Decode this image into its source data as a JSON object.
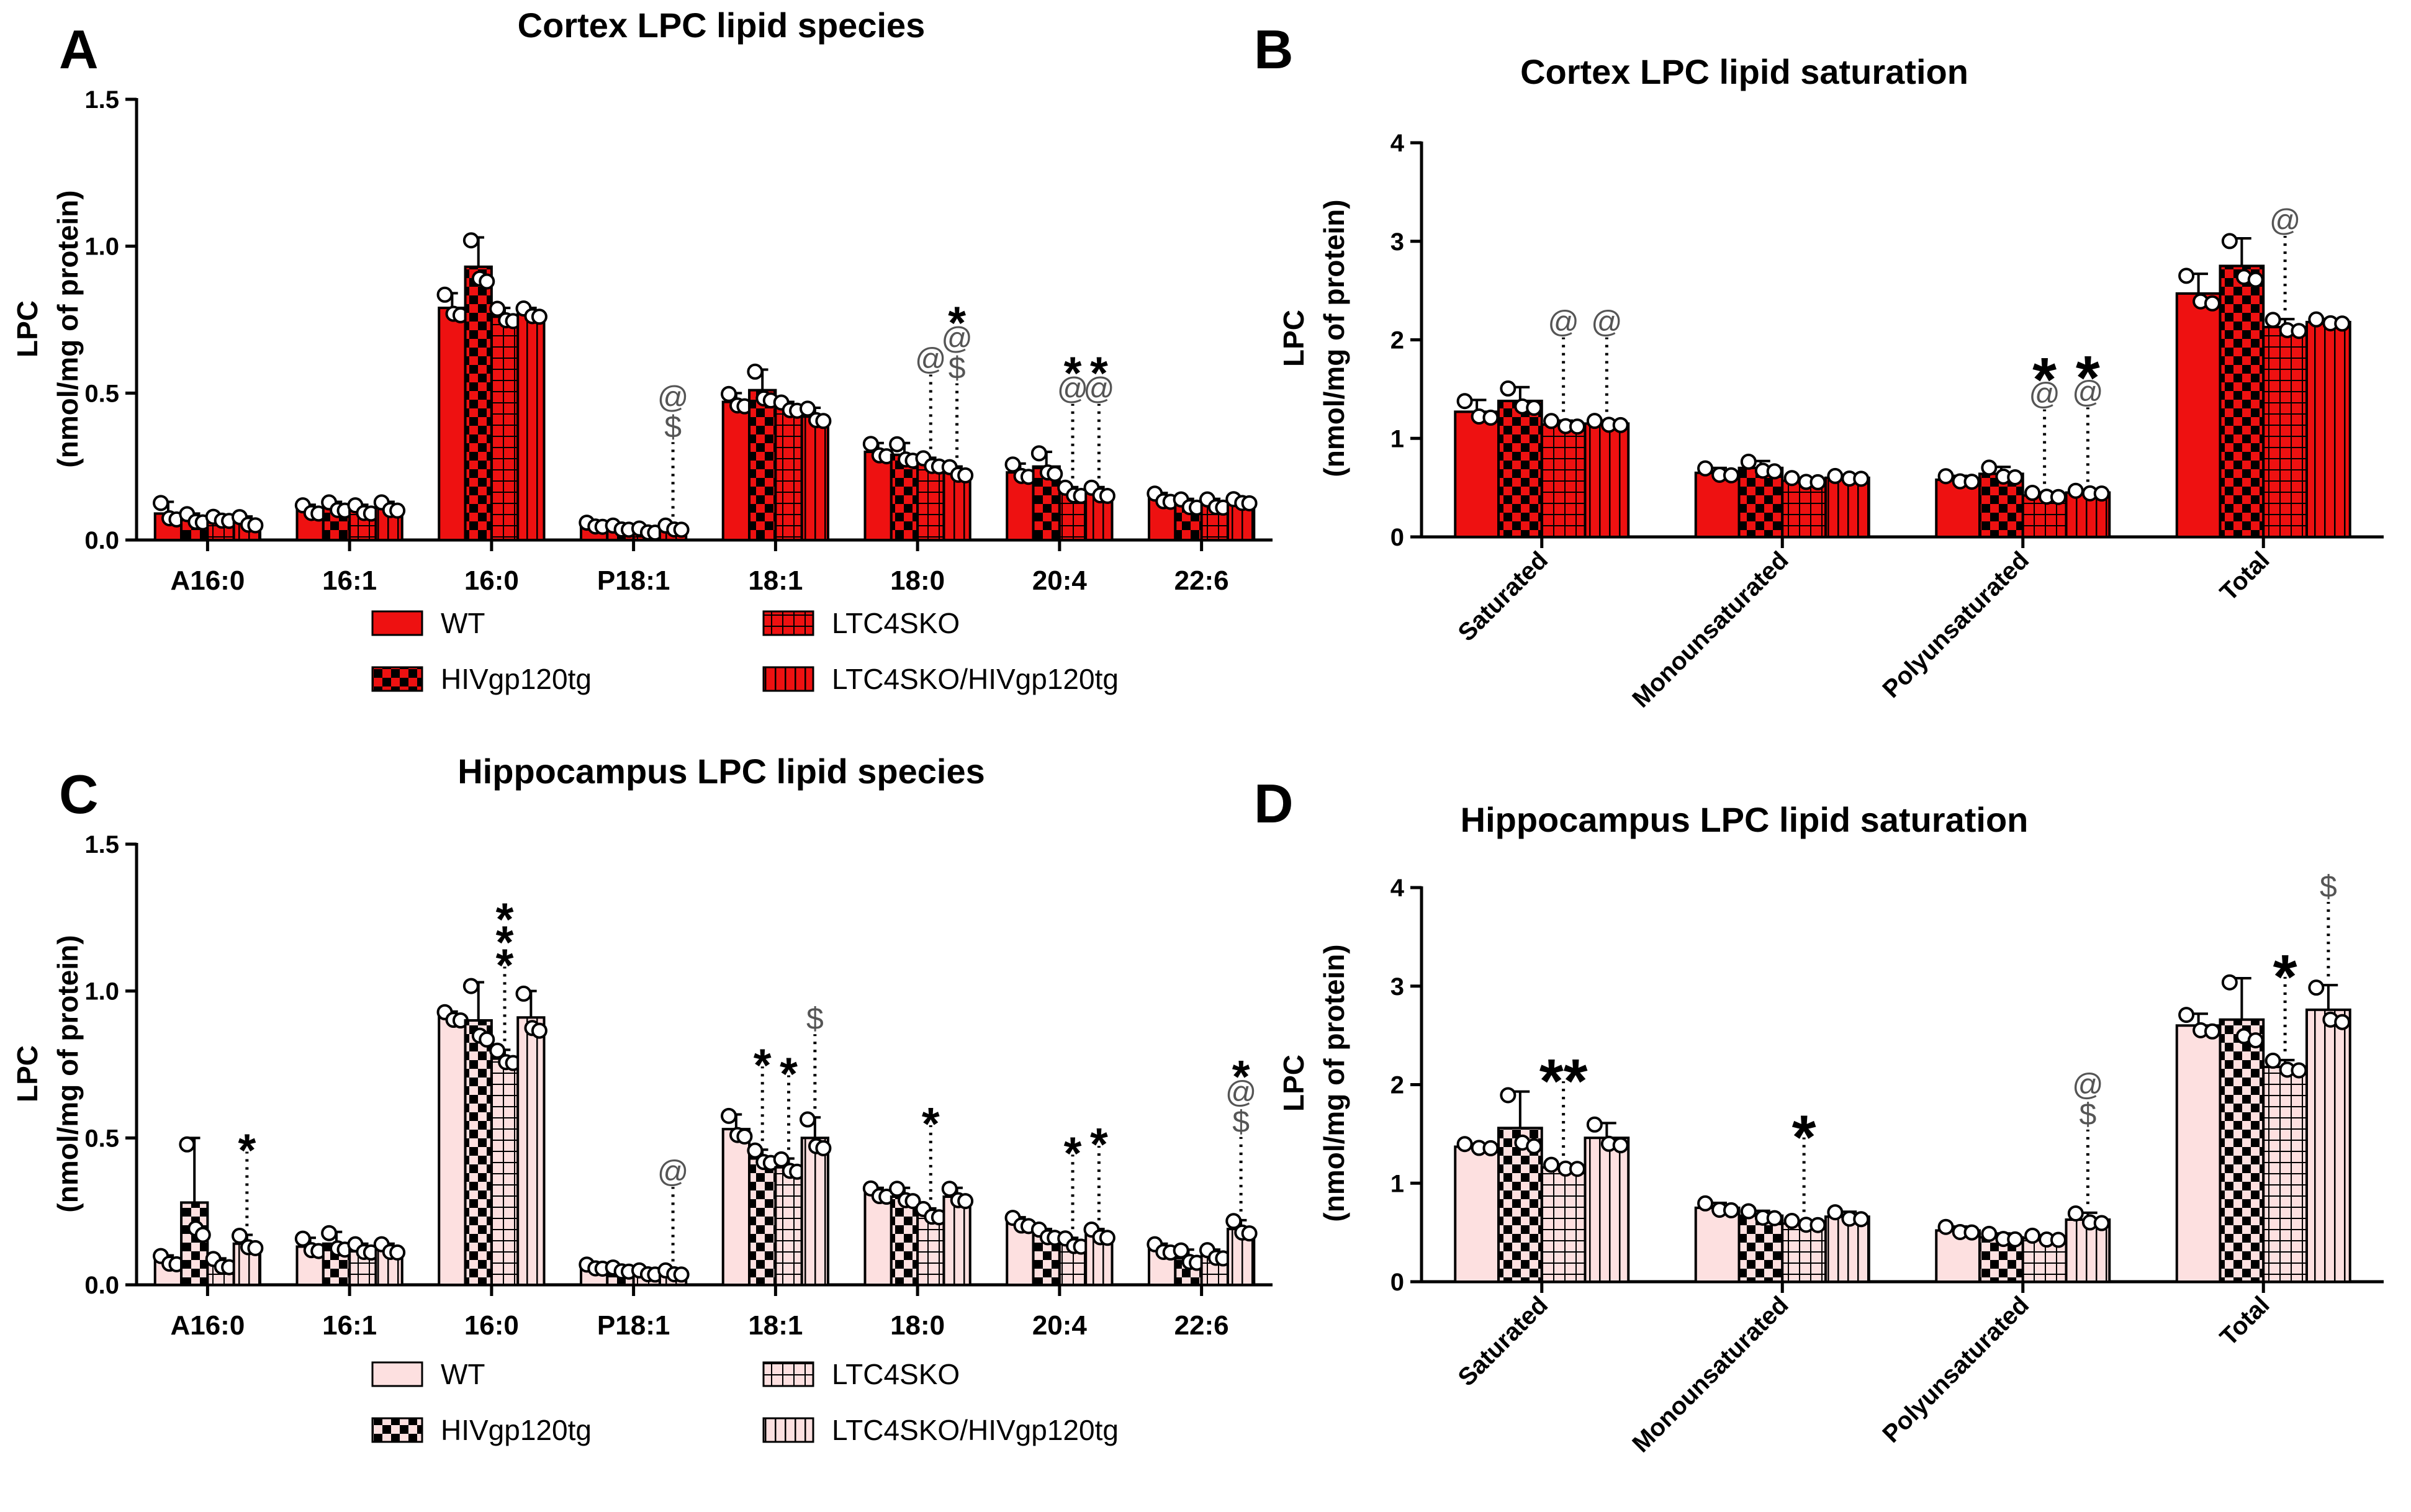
{
  "figure_colors": {
    "cortex_fill": "#ee1111",
    "hippocampus_fill": "#fde0e0",
    "bar_stroke": "#000000"
  },
  "legend_labels": [
    "WT",
    "HIVgp120tg",
    "LTC4SKO",
    "LTC4SKO/HIVgp120tg"
  ],
  "chart_data": [
    {
      "panel": "A",
      "type": "bar",
      "title": "Cortex LPC lipid species",
      "ylabel": "LPC",
      "ylabel2": "(nmol/mg of protein)",
      "ylim": [
        0,
        1.5
      ],
      "yticks": [
        "0.0",
        "0.5",
        "1.0",
        "1.5"
      ],
      "categories": [
        "A16:0",
        "16:1",
        "16:0",
        "P18:1",
        "18:1",
        "18:0",
        "20:4",
        "22:6"
      ],
      "series": [
        {
          "name": "WT",
          "values": [
            0.09,
            0.1,
            0.79,
            0.05,
            0.47,
            0.3,
            0.23,
            0.14
          ],
          "errors": [
            0.04,
            0.02,
            0.05,
            0.01,
            0.03,
            0.03,
            0.03,
            0.02
          ]
        },
        {
          "name": "HIVgp120tg",
          "values": [
            0.07,
            0.11,
            0.93,
            0.04,
            0.51,
            0.29,
            0.25,
            0.12
          ],
          "errors": [
            0.02,
            0.02,
            0.1,
            0.01,
            0.07,
            0.04,
            0.05,
            0.02
          ]
        },
        {
          "name": "LTC4SKO",
          "values": [
            0.07,
            0.1,
            0.76,
            0.03,
            0.45,
            0.26,
            0.16,
            0.12
          ],
          "errors": [
            0.01,
            0.02,
            0.03,
            0.01,
            0.02,
            0.02,
            0.02,
            0.02
          ]
        },
        {
          "name": "LTC4SKO/HIVgp120tg",
          "values": [
            0.06,
            0.11,
            0.77,
            0.04,
            0.42,
            0.23,
            0.16,
            0.13
          ],
          "errors": [
            0.02,
            0.02,
            0.02,
            0.01,
            0.03,
            0.02,
            0.02,
            0.01
          ]
        }
      ],
      "annotations": [
        {
          "category": "P18:1",
          "series": 3,
          "marks": [
            "$",
            "@"
          ]
        },
        {
          "category": "18:0",
          "series": 2,
          "marks": [
            "@"
          ]
        },
        {
          "category": "18:0",
          "series": 3,
          "marks": [
            "$",
            "@",
            "*"
          ]
        },
        {
          "category": "20:4",
          "series": 2,
          "marks": [
            "@",
            "*"
          ]
        },
        {
          "category": "20:4",
          "series": 3,
          "marks": [
            "@",
            "*"
          ]
        }
      ]
    },
    {
      "panel": "B",
      "type": "bar",
      "title": "Cortex LPC lipid saturation",
      "ylabel": "LPC",
      "ylabel2": "(nmol/mg of protein)",
      "ylim": [
        0,
        4
      ],
      "yticks": [
        "0",
        "1",
        "2",
        "3",
        "4"
      ],
      "categories": [
        "Saturated",
        "Monounsaturated",
        "Polyunsaturated",
        "Total"
      ],
      "series": [
        {
          "name": "WT",
          "values": [
            1.27,
            0.65,
            0.58,
            2.47
          ],
          "errors": [
            0.12,
            0.05,
            0.04,
            0.2
          ]
        },
        {
          "name": "HIVgp120tg",
          "values": [
            1.38,
            0.7,
            0.64,
            2.75
          ],
          "errors": [
            0.14,
            0.07,
            0.07,
            0.28
          ]
        },
        {
          "name": "LTC4SKO",
          "values": [
            1.14,
            0.57,
            0.42,
            2.13
          ],
          "errors": [
            0.04,
            0.03,
            0.03,
            0.08
          ]
        },
        {
          "name": "LTC4SKO/HIVgp120tg",
          "values": [
            1.15,
            0.6,
            0.45,
            2.18
          ],
          "errors": [
            0.03,
            0.02,
            0.02,
            0.03
          ]
        }
      ],
      "annotations": [
        {
          "category": "Saturated",
          "series": 2,
          "marks": [
            "@"
          ]
        },
        {
          "category": "Saturated",
          "series": 3,
          "marks": [
            "@"
          ]
        },
        {
          "category": "Polyunsaturated",
          "series": 2,
          "marks": [
            "@",
            "*"
          ]
        },
        {
          "category": "Polyunsaturated",
          "series": 3,
          "marks": [
            "@",
            "*"
          ]
        },
        {
          "category": "Total",
          "series": 2,
          "marks": [
            "@"
          ]
        }
      ]
    },
    {
      "panel": "C",
      "type": "bar",
      "title": "Hippocampus LPC lipid species",
      "ylabel": "LPC",
      "ylabel2": "(nmol/mg of protein)",
      "ylim": [
        0,
        1.5
      ],
      "yticks": [
        "0.0",
        "0.5",
        "1.0",
        "1.5"
      ],
      "categories": [
        "A16:0",
        "16:1",
        "16:0",
        "P18:1",
        "18:1",
        "18:0",
        "20:4",
        "22:6"
      ],
      "series": [
        {
          "name": "WT",
          "values": [
            0.08,
            0.13,
            0.91,
            0.06,
            0.53,
            0.31,
            0.21,
            0.12
          ],
          "errors": [
            0.02,
            0.03,
            0.02,
            0.01,
            0.05,
            0.02,
            0.02,
            0.02
          ]
        },
        {
          "name": "HIVgp120tg",
          "values": [
            0.28,
            0.14,
            0.9,
            0.05,
            0.43,
            0.3,
            0.17,
            0.09
          ],
          "errors": [
            0.22,
            0.04,
            0.13,
            0.01,
            0.03,
            0.03,
            0.02,
            0.03
          ]
        },
        {
          "name": "LTC4SKO",
          "values": [
            0.07,
            0.12,
            0.77,
            0.04,
            0.4,
            0.24,
            0.14,
            0.1
          ],
          "errors": [
            0.02,
            0.02,
            0.03,
            0.01,
            0.03,
            0.02,
            0.02,
            0.02
          ]
        },
        {
          "name": "LTC4SKO/HIVgp120tg",
          "values": [
            0.14,
            0.12,
            0.91,
            0.04,
            0.5,
            0.3,
            0.17,
            0.19
          ],
          "errors": [
            0.03,
            0.02,
            0.09,
            0.01,
            0.07,
            0.03,
            0.02,
            0.03
          ]
        }
      ],
      "annotations": [
        {
          "category": "A16:0",
          "series": 3,
          "marks": [
            "*"
          ]
        },
        {
          "category": "16:0",
          "series": 2,
          "marks": [
            "*",
            "*",
            "*"
          ]
        },
        {
          "category": "P18:1",
          "series": 3,
          "marks": [
            "@"
          ]
        },
        {
          "category": "18:1",
          "series": 1,
          "marks": [
            "*"
          ]
        },
        {
          "category": "18:1",
          "series": 2,
          "marks": [
            "*"
          ]
        },
        {
          "category": "18:1",
          "series": 3,
          "marks": [
            "$"
          ]
        },
        {
          "category": "18:0",
          "series": 2,
          "marks": [
            "*"
          ]
        },
        {
          "category": "20:4",
          "series": 2,
          "marks": [
            "*"
          ]
        },
        {
          "category": "20:4",
          "series": 3,
          "marks": [
            "*"
          ]
        },
        {
          "category": "22:6",
          "series": 3,
          "marks": [
            "$",
            "@",
            "*"
          ]
        }
      ]
    },
    {
      "panel": "D",
      "type": "bar",
      "title": "Hippocampus LPC lipid saturation",
      "ylabel": "LPC",
      "ylabel2": "(nmol/mg of protein)",
      "ylim": [
        0,
        4
      ],
      "yticks": [
        "0",
        "1",
        "2",
        "3",
        "4"
      ],
      "categories": [
        "Saturated",
        "Monounsaturated",
        "Polyunsaturated",
        "Total"
      ],
      "series": [
        {
          "name": "WT",
          "values": [
            1.37,
            0.75,
            0.52,
            2.6
          ],
          "errors": [
            0.03,
            0.05,
            0.04,
            0.12
          ]
        },
        {
          "name": "HIVgp120tg",
          "values": [
            1.56,
            0.67,
            0.45,
            2.66
          ],
          "errors": [
            0.37,
            0.05,
            0.04,
            0.42
          ]
        },
        {
          "name": "LTC4SKO",
          "values": [
            1.16,
            0.59,
            0.44,
            2.18
          ],
          "errors": [
            0.03,
            0.03,
            0.03,
            0.07
          ]
        },
        {
          "name": "LTC4SKO/HIVgp120tg",
          "values": [
            1.46,
            0.66,
            0.63,
            2.76
          ],
          "errors": [
            0.15,
            0.05,
            0.07,
            0.25
          ]
        }
      ],
      "annotations": [
        {
          "category": "Saturated",
          "series": 2,
          "marks": [
            "**"
          ]
        },
        {
          "category": "Monounsaturated",
          "series": 2,
          "marks": [
            "*"
          ]
        },
        {
          "category": "Polyunsaturated",
          "series": 3,
          "marks": [
            "$",
            "@"
          ]
        },
        {
          "category": "Total",
          "series": 2,
          "marks": [
            "*"
          ]
        },
        {
          "category": "Total",
          "series": 3,
          "marks": [
            "$"
          ]
        }
      ]
    }
  ]
}
